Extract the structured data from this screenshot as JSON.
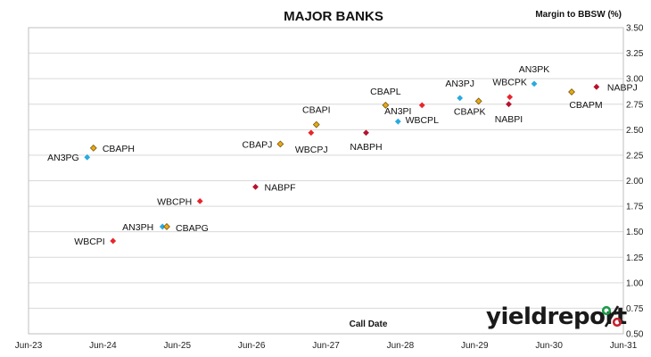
{
  "chart_data": {
    "type": "scatter",
    "title": "MAJOR BANKS",
    "ylabel": "Margin to BBSW (%)",
    "xlabel": "Call Date",
    "ylim": [
      0.5,
      3.5
    ],
    "yticks": [
      "0.50",
      "0.75",
      "1.00",
      "1.25",
      "1.50",
      "1.75",
      "2.00",
      "2.25",
      "2.50",
      "2.75",
      "3.00",
      "3.25",
      "3.50"
    ],
    "xlim": [
      "2023-06",
      "2031-06"
    ],
    "xticks": [
      "Jun-23",
      "Jun-24",
      "Jun-25",
      "Jun-26",
      "Jun-27",
      "Jun-28",
      "Jun-29",
      "Jun-30",
      "Jun-31"
    ],
    "grid": "horizontal",
    "colors": {
      "AN": "#29aae1",
      "WBC": "#e8252c",
      "NAB": "#b5122d",
      "CBA": "#e6a817"
    },
    "points": [
      {
        "label": "AN3PG",
        "x": "2024-03-15",
        "y": 2.23,
        "issuer": "AN"
      },
      {
        "label": "CBAPH",
        "x": "2024-04-15",
        "y": 2.32,
        "issuer": "CBA"
      },
      {
        "label": "WBCPI",
        "x": "2024-07-20",
        "y": 1.41,
        "issuer": "WBC"
      },
      {
        "label": "AN3PH",
        "x": "2025-03-20",
        "y": 1.55,
        "issuer": "AN"
      },
      {
        "label": "CBAPG",
        "x": "2025-04-10",
        "y": 1.55,
        "issuer": "CBA"
      },
      {
        "label": "WBCPH",
        "x": "2025-09-20",
        "y": 1.8,
        "issuer": "WBC"
      },
      {
        "label": "NABPF",
        "x": "2026-06-20",
        "y": 1.94,
        "issuer": "NAB"
      },
      {
        "label": "CBAPJ",
        "x": "2026-10-20",
        "y": 2.36,
        "issuer": "CBA"
      },
      {
        "label": "WBCPJ",
        "x": "2027-03-20",
        "y": 2.47,
        "issuer": "WBC"
      },
      {
        "label": "CBAPI",
        "x": "2027-04-15",
        "y": 2.55,
        "issuer": "CBA"
      },
      {
        "label": "NABPH",
        "x": "2027-12-15",
        "y": 2.47,
        "issuer": "NAB"
      },
      {
        "label": "AN3PI",
        "x": "2028-05-20",
        "y": 2.58,
        "issuer": "AN"
      },
      {
        "label": "CBAPL",
        "x": "2028-03-20",
        "y": 2.74,
        "issuer": "CBA"
      },
      {
        "label": "WBCPL",
        "x": "2028-09-15",
        "y": 2.74,
        "issuer": "WBC"
      },
      {
        "label": "AN3PJ",
        "x": "2029-03-20",
        "y": 2.81,
        "issuer": "AN"
      },
      {
        "label": "CBAPK",
        "x": "2029-06-20",
        "y": 2.78,
        "issuer": "CBA"
      },
      {
        "label": "WBCPK",
        "x": "2029-11-20",
        "y": 2.82,
        "issuer": "WBC"
      },
      {
        "label": "NABPI",
        "x": "2029-11-15",
        "y": 2.75,
        "issuer": "NAB"
      },
      {
        "label": "AN3PK",
        "x": "2030-03-20",
        "y": 2.95,
        "issuer": "AN"
      },
      {
        "label": "CBAPM",
        "x": "2030-09-20",
        "y": 2.87,
        "issuer": "CBA"
      },
      {
        "label": "NABPJ",
        "x": "2031-01-20",
        "y": 2.92,
        "issuer": "NAB"
      }
    ]
  },
  "brand": {
    "text": "yieldreport",
    "pct": "%"
  }
}
